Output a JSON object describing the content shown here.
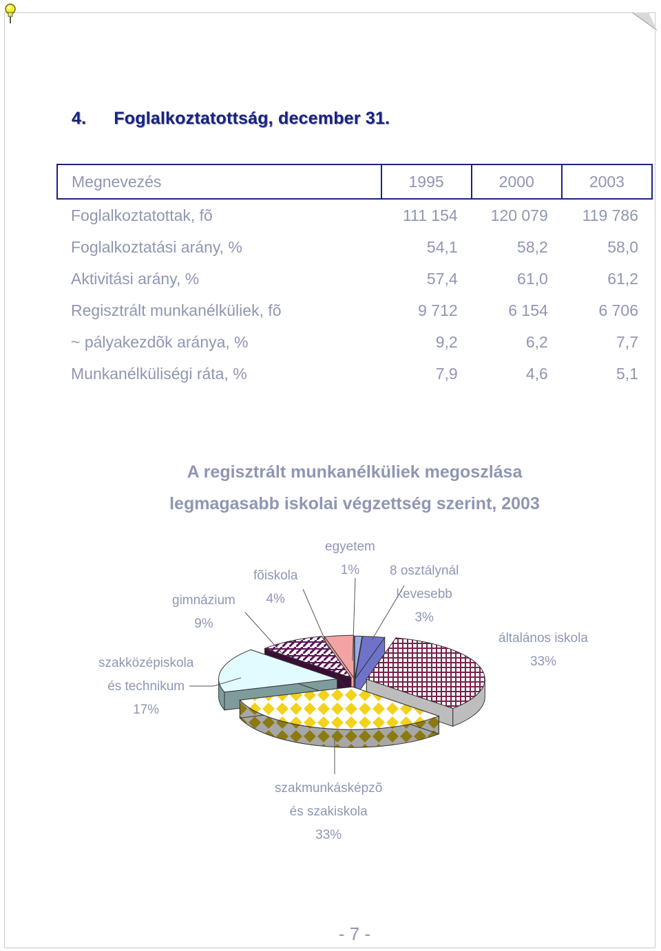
{
  "section": {
    "number": "4.",
    "title": "Foglalkoztatottság, december 31."
  },
  "table": {
    "headers": [
      "Megnevezés",
      "1995",
      "2000",
      "2003"
    ],
    "rows": [
      {
        "label": "Foglalkoztatottak, fõ",
        "values": [
          "111 154",
          "120 079",
          "119 786"
        ]
      },
      {
        "label": "Foglalkoztatási arány, %",
        "values": [
          "54,1",
          "58,2",
          "58,0"
        ]
      },
      {
        "label": "Aktivitási arány, %",
        "values": [
          "57,4",
          "61,0",
          "61,2"
        ]
      },
      {
        "label": "Regisztrált munkanélküliek, fõ",
        "values": [
          "9 712",
          "6 154",
          "6 706"
        ]
      },
      {
        "label": "~ pályakezdõk aránya, %",
        "values": [
          "9,2",
          "6,2",
          "7,7"
        ]
      },
      {
        "label": "Munkanélküliségi ráta, %",
        "values": [
          "7,9",
          "4,6",
          "5,1"
        ]
      }
    ]
  },
  "chart_data": {
    "type": "pie",
    "title": "A regisztrált munkanélküliek megoszlása",
    "subtitle": "legmagasabb iskolai végzettség szerint, 2003",
    "slices": [
      {
        "label": "egyetem",
        "value": 1,
        "pct": "1%",
        "color": "#9cabe8"
      },
      {
        "label": "8 osztálynál kevesebb",
        "value": 3,
        "pct": "3%",
        "color": "#6f73c8"
      },
      {
        "label": "általános iskola",
        "value": 33,
        "pct": "33%",
        "color": "#7a1f4a"
      },
      {
        "label": "szakmunkásképzõ és szakiskola",
        "value": 33,
        "pct": "33%",
        "color": "#f2d21b"
      },
      {
        "label": "szakközépiskola és technikum",
        "value": 17,
        "pct": "17%",
        "color": "#e2fbff"
      },
      {
        "label": "gimnázium",
        "value": 9,
        "pct": "9%",
        "color": "#5b1555"
      },
      {
        "label": "fõiskola",
        "value": 4,
        "pct": "4%",
        "color": "#f4a3a3"
      }
    ],
    "labels": {
      "egyetem": [
        "egyetem",
        "1%"
      ],
      "kevesebb": [
        "8 osztálynál",
        "kevesebb",
        "3%"
      ],
      "altalanos": [
        "általános iskola",
        "33%"
      ],
      "szakmunkas": [
        "szakmunkásképzõ",
        "és szakiskola",
        "33%"
      ],
      "szakkozep": [
        "szakközépiskola",
        "és technikum",
        "17%"
      ],
      "gimnazium": [
        "gimnázium",
        "9%"
      ],
      "foiskola": [
        "fõiskola",
        "4%"
      ]
    }
  },
  "page_number": "- 7 -"
}
